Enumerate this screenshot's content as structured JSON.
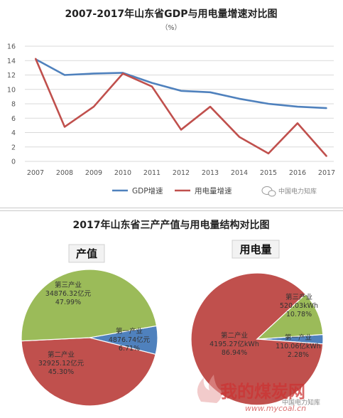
{
  "chart_data": [
    {
      "type": "line",
      "title": "2007-2017年山东省GDP与用电量增速对比图",
      "subtitle": "（%）",
      "x": [
        "2007",
        "2008",
        "2009",
        "2010",
        "2011",
        "2012",
        "2013",
        "2014",
        "2015",
        "2016",
        "2017"
      ],
      "ylim": [
        0,
        16
      ],
      "yticks": [
        0,
        2,
        4,
        6,
        8,
        10,
        12,
        14,
        16
      ],
      "grid": true,
      "legend_position": "bottom",
      "series": [
        {
          "name": "GDP增速",
          "color": "#4f81bd",
          "values": [
            14.2,
            12.0,
            12.2,
            12.3,
            10.9,
            9.8,
            9.6,
            8.7,
            8.0,
            7.6,
            7.4
          ]
        },
        {
          "name": "用电量增速",
          "color": "#c0504d",
          "values": [
            14.3,
            4.8,
            7.6,
            12.2,
            10.4,
            4.4,
            7.6,
            3.4,
            1.1,
            5.3,
            0.7
          ]
        }
      ]
    },
    {
      "type": "pie",
      "title": "2017年山东省三产产值与用电量结构对比图",
      "subtitle": "产值",
      "slices": [
        {
          "name": "第一产业",
          "value": 4876.74,
          "value_label": "4876.74亿元",
          "percent": 6.71,
          "percent_label": "6.71%",
          "color": "#4f81bd"
        },
        {
          "name": "第二产业",
          "value": 32925.12,
          "value_label": "32925.12亿元",
          "percent": 45.3,
          "percent_label": "45.30%",
          "color": "#c0504d"
        },
        {
          "name": "第三产业",
          "value": 34876.32,
          "value_label": "34876.32亿元",
          "percent": 47.99,
          "percent_label": "47.99%",
          "color": "#9bbb59"
        }
      ]
    },
    {
      "type": "pie",
      "subtitle": "用电量",
      "slices": [
        {
          "name": "第一产业",
          "value": 110.06,
          "value_label": "110.06亿kWh",
          "percent": 2.28,
          "percent_label": "2.28%",
          "color": "#4f81bd"
        },
        {
          "name": "第二产业",
          "value": 4195.27,
          "value_label": "4195.27亿kWh",
          "percent": 86.94,
          "percent_label": "86.94%",
          "color": "#c0504d"
        },
        {
          "name": "第三产业",
          "value": 520.03,
          "value_label": "520.03kWh",
          "percent": 10.78,
          "percent_label": "10.78%",
          "color": "#9bbb59"
        }
      ]
    }
  ],
  "watermarks": {
    "wechat": "中国电力知库",
    "site_cn": "我的煤炭网",
    "site_url": "www.mycoal.cn",
    "bottom_right": "中国电力知库"
  }
}
